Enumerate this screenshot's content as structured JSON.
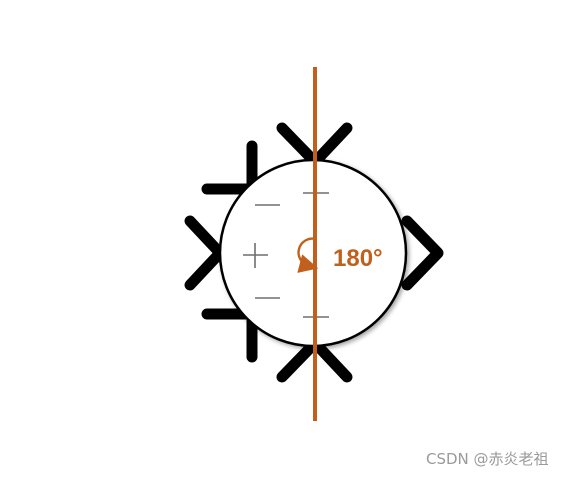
{
  "diagram": {
    "rotation_label": "180°",
    "rotation_axis": "vertical",
    "colors": {
      "axis": "#c0601c",
      "bars": "#000000",
      "signs": "#6e6e6e",
      "circle_stroke": "#000000",
      "circle_fill": "#ffffff"
    },
    "signs": {
      "minus": "minus-sign",
      "plus": "plus-sign"
    }
  },
  "watermark": {
    "text": "CSDN @赤炎老祖"
  }
}
